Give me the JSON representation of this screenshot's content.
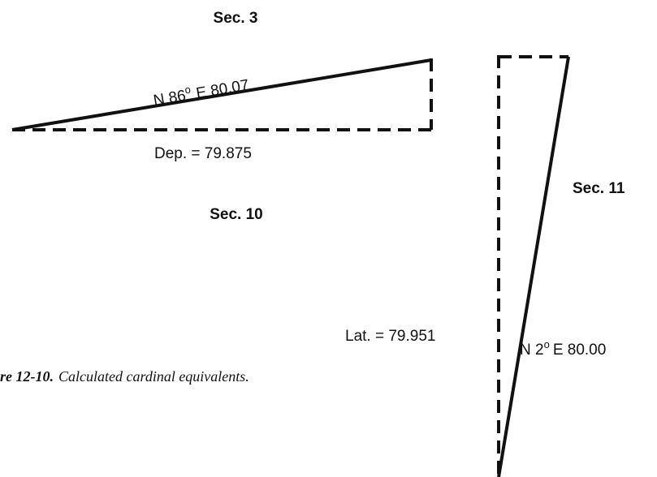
{
  "sections": {
    "top": "Sec. 3",
    "middle": "Sec. 10",
    "right": "Sec. 11"
  },
  "bearing_1": {
    "prefix": "N 86",
    "sup": "o",
    "suffix": "E 80.07"
  },
  "departure": "Dep. = 79.875",
  "latitude": "Lat. = 79.951",
  "bearing_2": {
    "prefix": "N 2",
    "sup": "o",
    "suffix": "E 80.00"
  },
  "caption": {
    "label": "re 12-10.",
    "text": "Calculated cardinal equivalents."
  }
}
